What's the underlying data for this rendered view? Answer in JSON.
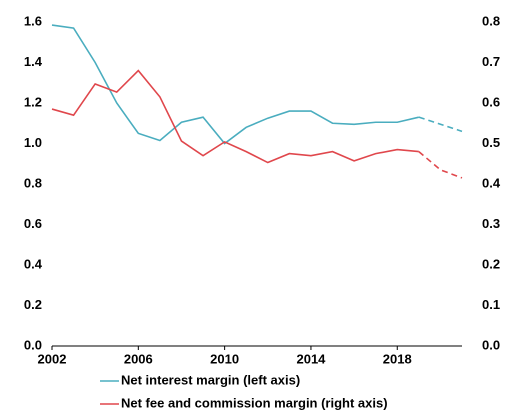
{
  "chart_data": {
    "type": "line",
    "x": [
      2002,
      2003,
      2004,
      2005,
      2006,
      2007,
      2008,
      2009,
      2010,
      2011,
      2012,
      2013,
      2014,
      2015,
      2016,
      2017,
      2018,
      2019,
      2020,
      2021
    ],
    "series": [
      {
        "name": "Net interest margin (left axis)",
        "color": "#4aadbf",
        "axis": "y",
        "values": [
          1.585,
          1.57,
          1.4,
          1.2,
          1.05,
          1.015,
          1.105,
          1.13,
          1.0,
          1.08,
          1.125,
          1.16,
          1.16,
          1.1,
          1.095,
          1.105,
          1.105,
          1.13,
          1.095,
          1.06
        ]
      },
      {
        "name": "Net fee and commission margin (right axis)",
        "color": "#e0474c",
        "axis": "y2",
        "values": [
          0.585,
          0.57,
          0.647,
          0.627,
          0.68,
          0.615,
          0.506,
          0.47,
          0.504,
          0.48,
          0.453,
          0.475,
          0.47,
          0.48,
          0.457,
          0.475,
          0.485,
          0.48,
          0.435,
          0.415
        ]
      }
    ],
    "dashed_after": 2019,
    "xlim": [
      2002,
      2021
    ],
    "xticks": [
      2002,
      2006,
      2010,
      2014,
      2018
    ],
    "ylim": [
      0,
      1.6
    ],
    "yticks": [
      {
        "value": 0,
        "label": "0.0"
      },
      0.2,
      0.4,
      0.6,
      0.8,
      {
        "value": 1,
        "label": "1.0"
      },
      1.2,
      1.4,
      1.6
    ],
    "y2lim": [
      0,
      0.8
    ],
    "y2ticks": [
      {
        "value": 0,
        "label": "0.0"
      },
      0.1,
      0.2,
      0.3,
      0.4,
      0.5,
      0.6,
      0.7,
      0.8
    ]
  }
}
